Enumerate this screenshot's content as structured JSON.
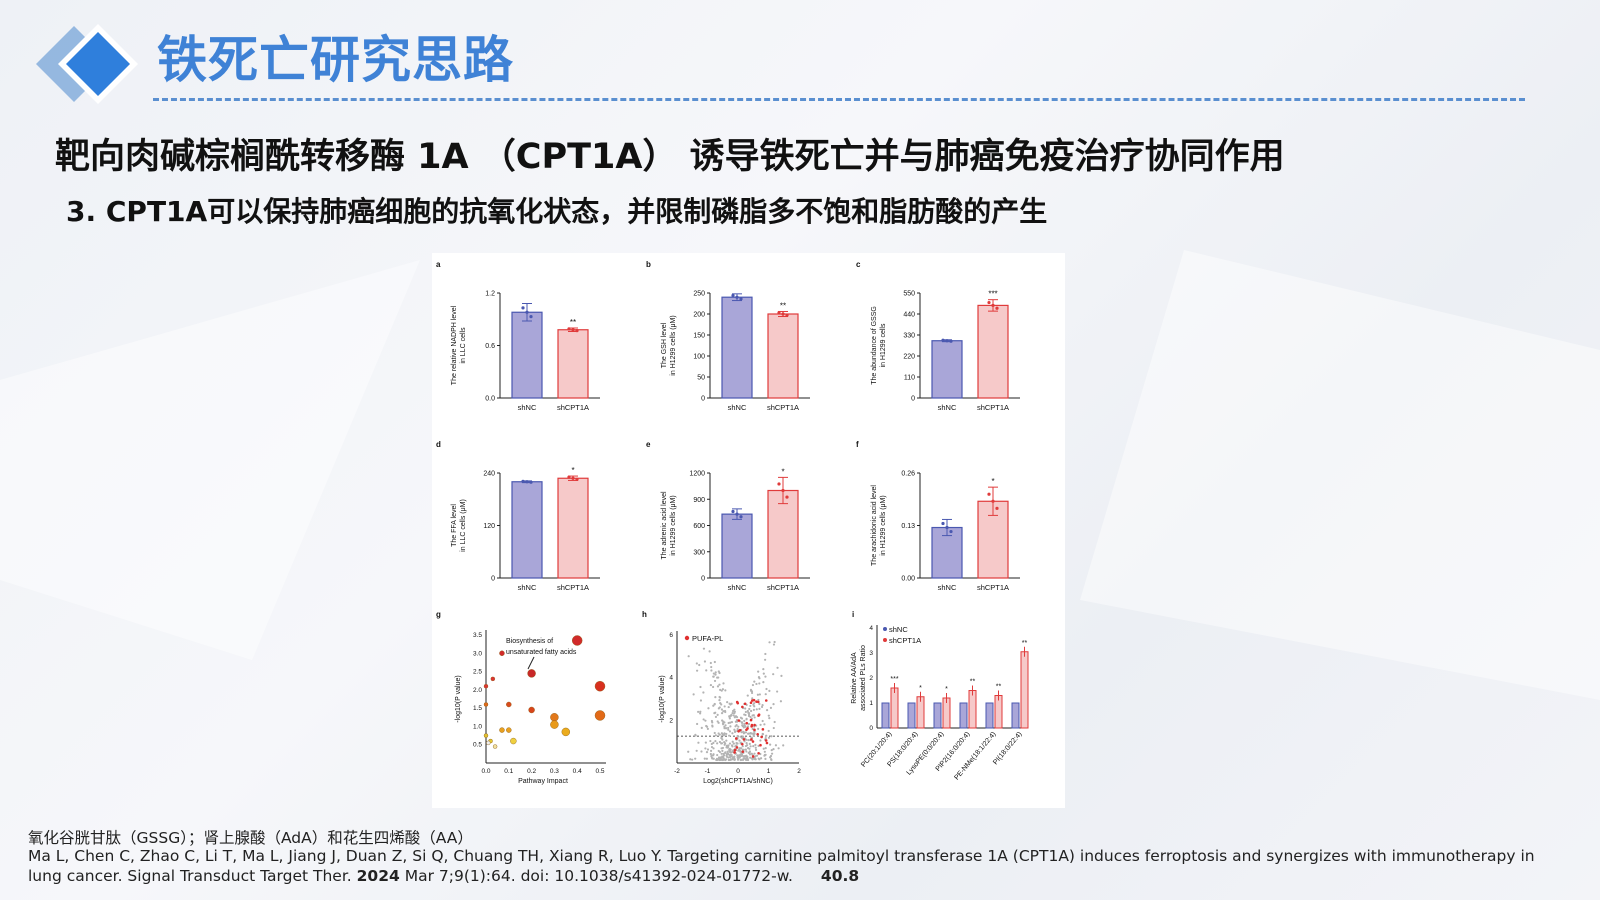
{
  "header": {
    "title": "铁死亡研究思路",
    "headline": "靶向肉碱棕榈酰转移酶 1A （CPT1A） 诱导铁死亡并与肺癌免疫治疗协同作用",
    "subheadline": "3. CPT1A可以保持肺癌细胞的抗氧化状态，并限制磷脂多不饱和脂肪酸的产生",
    "accent_color": "#3f82d6"
  },
  "figure": {
    "colors": {
      "shNC": "#a9a6d8",
      "shNC_edge": "#4a58b0",
      "shCPT1A": "#f6c9c9",
      "shCPT1A_edge": "#e03b3b"
    },
    "panels": [
      {
        "letter": "a",
        "ylabel1": "The relative NADPH level",
        "ylabel2": "in LLC cells",
        "ticks": [
          "0.0",
          "0.6",
          "1.2"
        ],
        "ymax": 1.2,
        "categories": [
          "shNC",
          "shCPT1A"
        ],
        "values": [
          0.98,
          0.78
        ],
        "err": [
          0.1,
          0.02
        ],
        "sig": "**"
      },
      {
        "letter": "b",
        "ylabel1": "The GSH level",
        "ylabel2": "in H1299 cells (μM)",
        "ticks": [
          "0",
          "50",
          "100",
          "150",
          "200",
          "250"
        ],
        "ymax": 250,
        "categories": [
          "shNC",
          "shCPT1A"
        ],
        "values": [
          240,
          200
        ],
        "err": [
          8,
          6
        ],
        "sig": "**"
      },
      {
        "letter": "c",
        "ylabel1": "The abundance of GSSG",
        "ylabel2": "in H1299 cells",
        "ticks": [
          "0",
          "110",
          "220",
          "330",
          "440",
          "550"
        ],
        "ymax": 550,
        "categories": [
          "shNC",
          "shCPT1A"
        ],
        "values": [
          300,
          485
        ],
        "err": [
          5,
          30
        ],
        "sig": "***"
      },
      {
        "letter": "d",
        "ylabel1": "The FFA level",
        "ylabel2": "in LLC cells (μM)",
        "ticks": [
          "0",
          "120",
          "240"
        ],
        "ymax": 240,
        "categories": [
          "shNC",
          "shCPT1A"
        ],
        "values": [
          220,
          228
        ],
        "err": [
          2,
          5
        ],
        "sig": "*"
      },
      {
        "letter": "e",
        "ylabel1": "The adrenic acid level",
        "ylabel2": "in H1299 cells (μM)",
        "ticks": [
          "0",
          "300",
          "600",
          "900",
          "1200"
        ],
        "ymax": 1200,
        "categories": [
          "shNC",
          "shCPT1A"
        ],
        "values": [
          730,
          1000
        ],
        "err": [
          60,
          150
        ],
        "sig": "*"
      },
      {
        "letter": "f",
        "ylabel1": "The arachidonic acid level",
        "ylabel2": "in H1299 cells (μM)",
        "ticks": [
          "0.00",
          "0.13",
          "0.26"
        ],
        "ymax": 0.26,
        "categories": [
          "shNC",
          "shCPT1A"
        ],
        "values": [
          0.125,
          0.19
        ],
        "err": [
          0.02,
          0.035
        ],
        "sig": "*"
      }
    ],
    "panel_g": {
      "letter": "g",
      "xlabel": "Pathway Impact",
      "ylabel": "-log10(P value)",
      "xticks": [
        "0.0",
        "0.1",
        "0.2",
        "0.3",
        "0.4",
        "0.5"
      ],
      "yticks": [
        "0.5",
        "1.0",
        "1.5",
        "2.0",
        "2.5",
        "3.0",
        "3.5"
      ],
      "annotation1": "Biosynthesis of",
      "annotation2": "unsaturated fatty acids",
      "points": [
        {
          "x": 0.4,
          "y": 3.35,
          "r": 5,
          "c": "#d12a2a"
        },
        {
          "x": 0.07,
          "y": 3.0,
          "r": 2.5,
          "c": "#d12a2a"
        },
        {
          "x": 0.2,
          "y": 2.45,
          "r": 4,
          "c": "#c82828"
        },
        {
          "x": 0.03,
          "y": 2.3,
          "r": 2,
          "c": "#d33"
        },
        {
          "x": 0.5,
          "y": 2.1,
          "r": 5,
          "c": "#d8301f"
        },
        {
          "x": 0.0,
          "y": 2.1,
          "r": 2,
          "c": "#d33"
        },
        {
          "x": 0.1,
          "y": 1.6,
          "r": 2.5,
          "c": "#d94a1c"
        },
        {
          "x": 0.2,
          "y": 1.45,
          "r": 3,
          "c": "#d8441a"
        },
        {
          "x": 0.0,
          "y": 1.6,
          "r": 2,
          "c": "#e0691a"
        },
        {
          "x": 0.3,
          "y": 1.25,
          "r": 4,
          "c": "#e2781a"
        },
        {
          "x": 0.5,
          "y": 1.3,
          "r": 5,
          "c": "#e26a18"
        },
        {
          "x": 0.07,
          "y": 0.9,
          "r": 2.5,
          "c": "#e8a020"
        },
        {
          "x": 0.1,
          "y": 0.9,
          "r": 2.5,
          "c": "#e8a020"
        },
        {
          "x": 0.3,
          "y": 1.05,
          "r": 4,
          "c": "#e89a1a"
        },
        {
          "x": 0.35,
          "y": 0.85,
          "r": 4,
          "c": "#ebac1e"
        },
        {
          "x": 0.0,
          "y": 0.75,
          "r": 2,
          "c": "#e0c030"
        },
        {
          "x": 0.02,
          "y": 0.6,
          "r": 2,
          "c": "#e6c830"
        },
        {
          "x": 0.12,
          "y": 0.6,
          "r": 3,
          "c": "#efd040"
        },
        {
          "x": 0.04,
          "y": 0.45,
          "r": 2,
          "c": "#f0e0a0"
        },
        {
          "x": 0.01,
          "y": 0.55,
          "r": 2,
          "c": "#eee"
        }
      ]
    },
    "panel_h": {
      "letter": "h",
      "legend": "PUFA-PL",
      "xlabel": "Log2(shCPT1A/shNC)",
      "ylabel": "-log10(P value)",
      "xticks": [
        "-2",
        "-1",
        "0",
        "1",
        "2"
      ],
      "yticks": [
        "2",
        "4",
        "6"
      ]
    },
    "panel_i": {
      "letter": "i",
      "legend1": "shNC",
      "legend2": "shCPT1A",
      "ylabel1": "Relative AA/AdA",
      "ylabel2": "associated PLs Ratio",
      "yticks": [
        "0",
        "1",
        "2",
        "3",
        "4"
      ],
      "ymax": 4,
      "categories": [
        "PC(20:1/20:4)",
        "PS(18:0/20:4)",
        "LysoPE(0:0/20:4)",
        "PIP2(16:0/20:4)",
        "PE-NMe(18:1/22:4)",
        "PI(18:0/22:4)"
      ],
      "shNC": [
        1.0,
        1.0,
        1.0,
        1.0,
        1.0,
        1.0
      ],
      "shCPT1A": [
        1.6,
        1.25,
        1.2,
        1.5,
        1.3,
        3.05
      ],
      "sig": [
        "***",
        "*",
        "*",
        "**",
        "**",
        "**"
      ]
    }
  },
  "footer": {
    "abbreviations": "氧化谷胱甘肽（GSSG）；肾上腺酸（AdA）和花生四烯酸（AA）",
    "citation_a": "Ma L, Chen C, Zhao C, Li T, Ma L, Jiang J, Duan Z, Si Q, Chuang TH, Xiang R, Luo Y. Targeting carnitine palmitoyl transferase 1A (CPT1A) induces ferroptosis and synergizes with immunotherapy in lung cancer. Signal Transduct Target Ther. ",
    "citation_year": "2024",
    "citation_b": " Mar 7;9(1):64. doi: 10.1038/s41392-024-01772-w.",
    "impact_factor": "40.8"
  }
}
